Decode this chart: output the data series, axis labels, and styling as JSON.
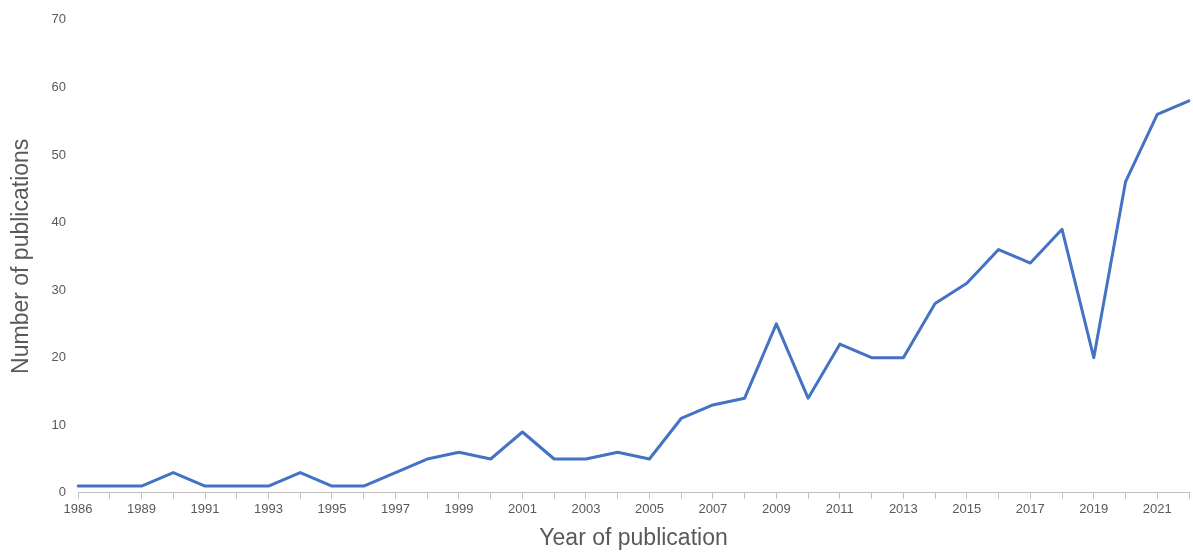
{
  "chart_data": {
    "type": "line",
    "xlabel": "Year of publication",
    "ylabel": "Number of publications",
    "categories": [
      "1986",
      null,
      "1989",
      null,
      "1991",
      null,
      "1993",
      null,
      "1995",
      null,
      "1997",
      null,
      "1999",
      null,
      "2001",
      null,
      "2003",
      null,
      "2005",
      null,
      "2007",
      null,
      "2009",
      null,
      "2011",
      null,
      "2013",
      null,
      "2015",
      null,
      "2017",
      null,
      "2019",
      null,
      "2021",
      null
    ],
    "series": [
      {
        "color": "#4472c4",
        "values": [
          1,
          1,
          1,
          3,
          1,
          1,
          1,
          3,
          1,
          1,
          3,
          5,
          6,
          5,
          9,
          5,
          5,
          6,
          5,
          11,
          13,
          14,
          25,
          14,
          22,
          20,
          20,
          28,
          31,
          36,
          34,
          39,
          20,
          46,
          56,
          58
        ]
      }
    ],
    "ylim": [
      0,
      70
    ],
    "yticks": [
      0,
      10,
      20,
      30,
      40,
      50,
      60,
      70
    ],
    "grid": false,
    "legend": false,
    "marker": "none",
    "line_style": "solid"
  }
}
